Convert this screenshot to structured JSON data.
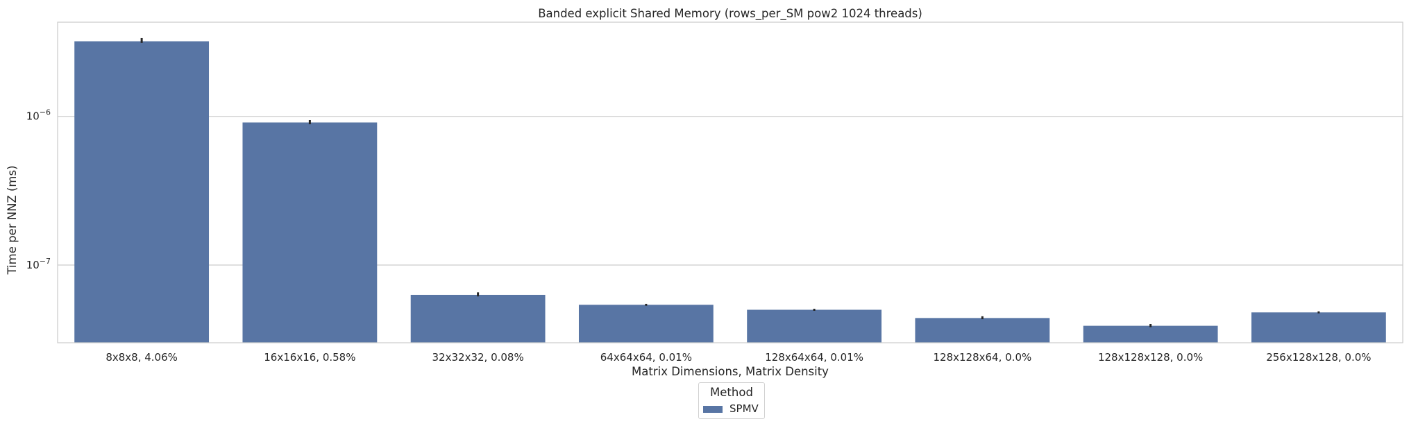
{
  "chart_data": {
    "type": "bar",
    "title": "Banded explicit Shared Memory (rows_per_SM pow2 1024 threads)",
    "xlabel": "Matrix Dimensions, Matrix Density",
    "ylabel": "Time per NNZ (ms)",
    "yscale": "log",
    "ylim": [
      3e-08,
      4.3e-06
    ],
    "yticks": [
      {
        "value": 1e-06,
        "base": "10",
        "exp": "−6"
      },
      {
        "value": 1e-07,
        "base": "10",
        "exp": "−7"
      }
    ],
    "grid": "y",
    "categories": [
      "8x8x8, 4.06%",
      "16x16x16, 0.58%",
      "32x32x32, 0.08%",
      "64x64x64, 0.01%",
      "128x64x64, 0.01%",
      "128x128x64, 0.0%",
      "128x128x128, 0.0%",
      "256x128x128, 0.0%"
    ],
    "series": [
      {
        "name": "SPMV",
        "color": "#5875a4",
        "values": [
          3.2e-06,
          9.1e-07,
          6.3e-08,
          5.4e-08,
          5e-08,
          4.4e-08,
          3.9e-08,
          4.8e-08
        ],
        "error_low": [
          3.12e-06,
          8.85e-07,
          6.15e-08,
          5.32e-08,
          4.92e-08,
          4.32e-08,
          3.82e-08,
          4.73e-08
        ],
        "error_high": [
          3.36e-06,
          9.45e-07,
          6.55e-08,
          5.48e-08,
          5.08e-08,
          4.52e-08,
          4.01e-08,
          4.88e-08
        ]
      }
    ],
    "legend": {
      "title": "Method",
      "position": "bottom-center"
    }
  }
}
